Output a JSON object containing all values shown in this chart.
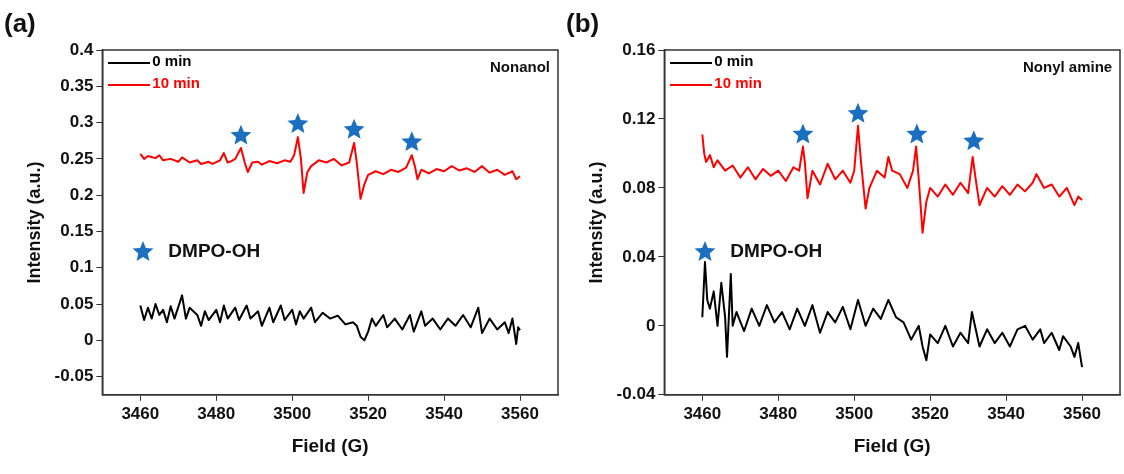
{
  "chart_data": [
    {
      "type": "line",
      "title": "(a)",
      "xlabel": "Field (G)",
      "ylabel": "Intensity (a.u.)",
      "xlim": [
        3450,
        3570
      ],
      "xticks": [
        3460,
        3480,
        3500,
        3520,
        3540,
        3560
      ],
      "ylim": [
        -0.075,
        0.4
      ],
      "yticks": [
        -0.05,
        0,
        0.05,
        0.1,
        0.15,
        0.2,
        0.25,
        0.3,
        0.35,
        0.4
      ],
      "grid": false,
      "legend": "top left",
      "annotations": [
        "Nonanol"
      ],
      "series": [
        {
          "name": "0 min",
          "color": "#000000",
          "marker": "none",
          "x": [
            3460,
            3461,
            3462,
            3463,
            3464,
            3465,
            3466,
            3467,
            3468,
            3469,
            3471,
            3472,
            3473,
            3475,
            3476,
            3477,
            3478,
            3480,
            3481,
            3482,
            3483,
            3485,
            3486,
            3488,
            3489,
            3491,
            3492,
            3494,
            3495,
            3497,
            3498,
            3500,
            3501,
            3502,
            3503,
            3505,
            3506,
            3508,
            3510,
            3512,
            3514,
            3516,
            3517,
            3518,
            3519,
            3520,
            3521,
            3522,
            3524,
            3525,
            3527,
            3529,
            3531,
            3532,
            3534,
            3535,
            3537,
            3539,
            3541,
            3543,
            3545,
            3547,
            3549,
            3550,
            3552,
            3554,
            3556,
            3557,
            3558,
            3559,
            3559.5,
            3560
          ],
          "values": [
            0.048,
            0.028,
            0.045,
            0.03,
            0.05,
            0.035,
            0.042,
            0.025,
            0.047,
            0.03,
            0.062,
            0.03,
            0.045,
            0.035,
            0.02,
            0.04,
            0.028,
            0.042,
            0.025,
            0.048,
            0.03,
            0.045,
            0.028,
            0.048,
            0.03,
            0.04,
            0.02,
            0.045,
            0.025,
            0.048,
            0.028,
            0.042,
            0.022,
            0.04,
            0.03,
            0.045,
            0.025,
            0.038,
            0.03,
            0.034,
            0.022,
            0.025,
            0.02,
            0.005,
            0.0,
            0.012,
            0.03,
            0.02,
            0.035,
            0.018,
            0.03,
            0.015,
            0.035,
            0.012,
            0.04,
            0.02,
            0.03,
            0.015,
            0.03,
            0.02,
            0.035,
            0.018,
            0.045,
            0.01,
            0.03,
            0.015,
            0.025,
            0.01,
            0.03,
            -0.005,
            0.018,
            0.014
          ]
        },
        {
          "name": "10 min",
          "color": "#ff0000",
          "marker": "none",
          "x": [
            3460,
            3461,
            3462,
            3464,
            3465,
            3466,
            3468,
            3470,
            3471,
            3473,
            3475,
            3476,
            3478,
            3479,
            3481,
            3482,
            3483,
            3484,
            3485,
            3486.5,
            3487.5,
            3488.3,
            3489.5,
            3491,
            3492,
            3494,
            3496,
            3498,
            3499.5,
            3500.5,
            3501.5,
            3502.3,
            3503,
            3504,
            3505,
            3507,
            3509,
            3511,
            3513,
            3515,
            3516.3,
            3517,
            3518,
            3519,
            3520,
            3522,
            3524,
            3526,
            3528,
            3530,
            3531.5,
            3532.3,
            3533,
            3534,
            3536,
            3538,
            3540,
            3542,
            3544,
            3546,
            3548,
            3550,
            3552,
            3554,
            3556,
            3558,
            3559,
            3560
          ],
          "values": [
            0.257,
            0.25,
            0.254,
            0.251,
            0.255,
            0.248,
            0.25,
            0.246,
            0.252,
            0.245,
            0.248,
            0.243,
            0.246,
            0.243,
            0.248,
            0.258,
            0.245,
            0.247,
            0.25,
            0.265,
            0.245,
            0.232,
            0.245,
            0.246,
            0.242,
            0.247,
            0.244,
            0.248,
            0.246,
            0.255,
            0.28,
            0.25,
            0.203,
            0.232,
            0.24,
            0.248,
            0.245,
            0.25,
            0.241,
            0.245,
            0.272,
            0.245,
            0.195,
            0.215,
            0.228,
            0.233,
            0.229,
            0.235,
            0.232,
            0.238,
            0.255,
            0.24,
            0.222,
            0.235,
            0.23,
            0.236,
            0.233,
            0.24,
            0.234,
            0.237,
            0.232,
            0.24,
            0.231,
            0.235,
            0.228,
            0.233,
            0.222,
            0.226
          ]
        },
        {
          "type": "scatter",
          "name": "DMPO-OH",
          "color": "#1a6fc0",
          "marker": "star",
          "x": [
            3486.5,
            3501.5,
            3516.3,
            3531.5
          ],
          "values": [
            0.282,
            0.298,
            0.29,
            0.273
          ]
        }
      ]
    },
    {
      "type": "line",
      "title": "(b)",
      "xlabel": "Field (G)",
      "ylabel": "Intensity (a.u.)",
      "xlim": [
        3450,
        3570
      ],
      "xticks": [
        3460,
        3480,
        3500,
        3520,
        3540,
        3560
      ],
      "ylim": [
        -0.04,
        0.16
      ],
      "yticks": [
        -0.04,
        0,
        0.04,
        0.08,
        0.12,
        0.16
      ],
      "grid": false,
      "legend": "top left",
      "annotations": [
        "Nonyl amine"
      ],
      "series": [
        {
          "name": "0 min",
          "color": "#000000",
          "marker": "none",
          "x": [
            3460,
            3460.7,
            3461.3,
            3462,
            3463,
            3464,
            3465,
            3466,
            3466.5,
            3467.5,
            3468,
            3469,
            3471,
            3473,
            3475,
            3477,
            3479,
            3481,
            3483,
            3485,
            3487,
            3489,
            3491,
            3493,
            3495,
            3497,
            3499,
            3501,
            3503,
            3505,
            3507,
            3509,
            3511,
            3513,
            3515,
            3517,
            3518,
            3519,
            3520,
            3522,
            3524,
            3526,
            3528,
            3530,
            3531,
            3533,
            3535,
            3537,
            3539,
            3541,
            3543,
            3545,
            3547,
            3549,
            3550,
            3552,
            3554,
            3555,
            3557,
            3558,
            3559,
            3560
          ],
          "values": [
            0.005,
            0.037,
            0.015,
            0.01,
            0.02,
            0.0,
            0.025,
            0.005,
            -0.018,
            0.03,
            0.0,
            0.008,
            -0.003,
            0.01,
            0.0,
            0.012,
            0.002,
            0.008,
            -0.002,
            0.01,
            0.0,
            0.012,
            -0.004,
            0.008,
            0.002,
            0.011,
            -0.002,
            0.015,
            0.0,
            0.01,
            0.004,
            0.015,
            0.005,
            0.002,
            -0.008,
            0.0,
            -0.012,
            -0.02,
            -0.005,
            -0.01,
            0.0,
            -0.012,
            -0.004,
            -0.01,
            0.008,
            -0.012,
            -0.002,
            -0.01,
            -0.004,
            -0.012,
            -0.002,
            0.0,
            -0.008,
            -0.002,
            -0.01,
            -0.004,
            -0.014,
            -0.006,
            -0.012,
            -0.018,
            -0.01,
            -0.024
          ]
        },
        {
          "name": "10 min",
          "color": "#ff0000",
          "marker": "none",
          "x": [
            3460,
            3460.5,
            3461,
            3462,
            3463,
            3464,
            3466,
            3468,
            3470,
            3472,
            3474,
            3476,
            3478,
            3480,
            3482,
            3484,
            3485.5,
            3486.5,
            3487,
            3487.7,
            3489,
            3491,
            3493,
            3495,
            3497,
            3499,
            3500,
            3501,
            3501.8,
            3503,
            3504,
            3506,
            3508,
            3509,
            3510,
            3512,
            3514,
            3515.5,
            3516.3,
            3517,
            3518,
            3519,
            3520,
            3522,
            3524,
            3526,
            3528,
            3530,
            3531.2,
            3532,
            3533,
            3535,
            3537,
            3539,
            3541,
            3543,
            3545,
            3547,
            3548,
            3550,
            3552,
            3554,
            3556,
            3558,
            3559,
            3560
          ],
          "values": [
            0.111,
            0.1,
            0.095,
            0.099,
            0.092,
            0.096,
            0.09,
            0.093,
            0.086,
            0.092,
            0.085,
            0.091,
            0.087,
            0.09,
            0.084,
            0.092,
            0.09,
            0.104,
            0.095,
            0.074,
            0.09,
            0.082,
            0.094,
            0.085,
            0.09,
            0.083,
            0.09,
            0.116,
            0.095,
            0.068,
            0.08,
            0.09,
            0.086,
            0.098,
            0.09,
            0.088,
            0.08,
            0.09,
            0.104,
            0.085,
            0.054,
            0.072,
            0.08,
            0.075,
            0.082,
            0.076,
            0.083,
            0.077,
            0.098,
            0.085,
            0.07,
            0.08,
            0.075,
            0.081,
            0.076,
            0.082,
            0.078,
            0.083,
            0.088,
            0.08,
            0.082,
            0.075,
            0.08,
            0.07,
            0.075,
            0.073
          ]
        },
        {
          "type": "scatter",
          "name": "DMPO-OH",
          "color": "#1a6fc0",
          "marker": "star",
          "x": [
            3486.5,
            3501,
            3516.5,
            3531.5
          ],
          "values": [
            0.111,
            0.123,
            0.111,
            0.107
          ]
        }
      ]
    }
  ]
}
